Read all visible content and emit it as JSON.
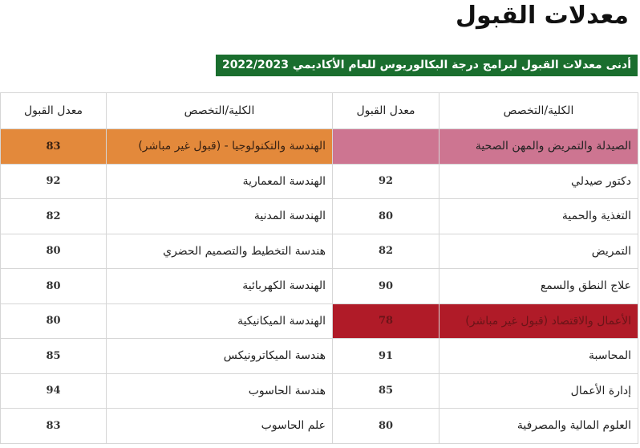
{
  "page": {
    "title": "معدلات القبول",
    "subtitle": "أدنى معدلات القبول لبرامج درجة البكالوريوس للعام الأكاديمي 2022/2023"
  },
  "table": {
    "headers": [
      "الكلية/التخصص",
      "معدل القبول",
      "الكلية/التخصص",
      "معدل القبول"
    ],
    "rows": [
      {
        "name1": "الصيدلة والتمريض والمهن الصحية",
        "val1": "",
        "name2": "الهندسة والتكنولوجيا - (قبول غير مباشر)",
        "val2": "83"
      },
      {
        "name1": "دكتور صيدلي",
        "val1": "92",
        "name2": "الهندسة المعمارية",
        "val2": "92"
      },
      {
        "name1": "التغذية والحمية",
        "val1": "80",
        "name2": "الهندسة المدنية",
        "val2": "82"
      },
      {
        "name1": "التمريض",
        "val1": "82",
        "name2": "هندسة التخطيط والتصميم الحضري",
        "val2": "80"
      },
      {
        "name1": "علاج النطق والسمع",
        "val1": "90",
        "name2": "الهندسة الكهربائية",
        "val2": "80"
      },
      {
        "name1": "الأعمال والاقتصاد (قبول غير مباشر)",
        "val1": "78",
        "name2": "الهندسة الميكانيكية",
        "val2": "80"
      },
      {
        "name1": "المحاسبة",
        "val1": "91",
        "name2": "هندسة الميكاترونيكس",
        "val2": "85"
      },
      {
        "name1": "إدارة الأعمال",
        "val1": "85",
        "name2": "هندسة الحاسوب",
        "val2": "94"
      },
      {
        "name1": "العلوم المالية والمصرفية",
        "val1": "80",
        "name2": "علم الحاسوب",
        "val2": "83"
      }
    ]
  },
  "colors": {
    "subtitle_bg": "#1a6e2e",
    "pink_highlight": "#cd7591",
    "orange_highlight": "#e3893b",
    "darkred_highlight": "#b01b28"
  }
}
